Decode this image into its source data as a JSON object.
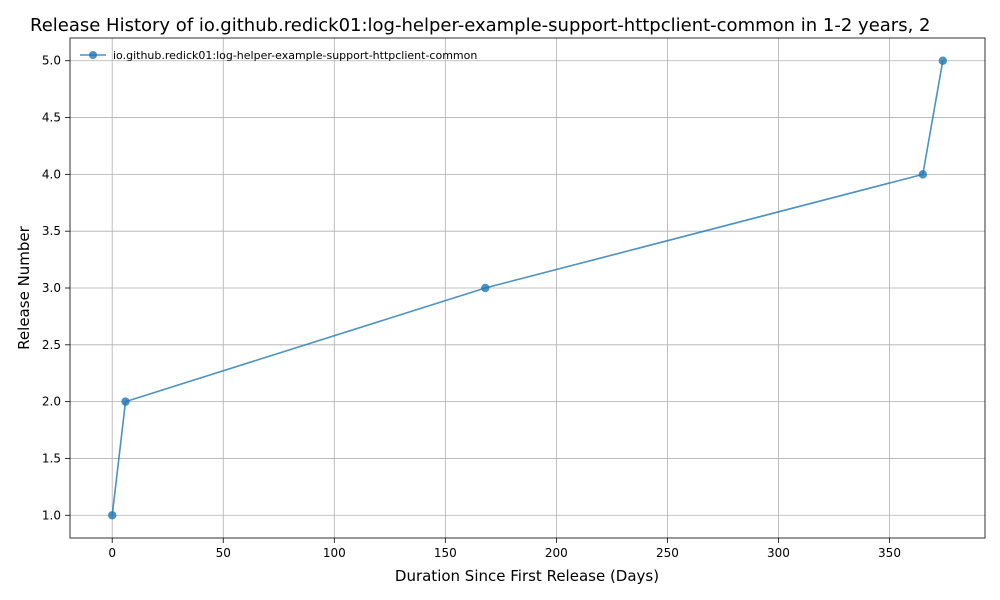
{
  "chart_data": {
    "type": "line",
    "title": "Release History of io.github.redick01:log-helper-example-support-httpclient-common in 1-2 years, 2",
    "xlabel": "Duration Since First Release (Days)",
    "ylabel": "Release Number",
    "xlim": [
      -19,
      393
    ],
    "ylim": [
      0.8,
      5.2
    ],
    "xticks": [
      0,
      50,
      100,
      150,
      200,
      250,
      300,
      350
    ],
    "yticks": [
      1.0,
      1.5,
      2.0,
      2.5,
      3.0,
      3.5,
      4.0,
      4.5,
      5.0
    ],
    "xtick_labels": [
      "0",
      "50",
      "100",
      "150",
      "200",
      "250",
      "300",
      "350"
    ],
    "ytick_labels": [
      "1.0",
      "1.5",
      "2.0",
      "2.5",
      "3.0",
      "3.5",
      "4.0",
      "4.5",
      "5.0"
    ],
    "grid": true,
    "legend_position": "upper-left",
    "series": [
      {
        "name": "io.github.redick01:log-helper-example-support-httpclient-common",
        "color": "#1f77b4",
        "x": [
          0,
          6,
          168,
          365,
          374
        ],
        "y": [
          1,
          2,
          3,
          4,
          5
        ]
      }
    ]
  }
}
